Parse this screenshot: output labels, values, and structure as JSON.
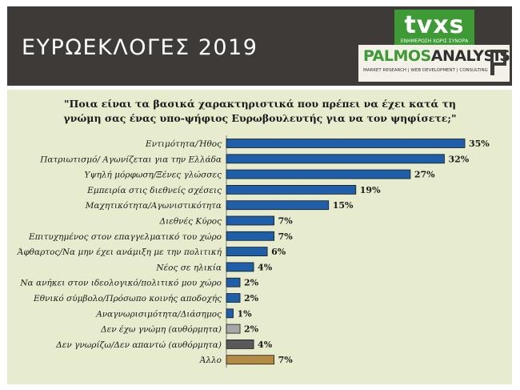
{
  "header": {
    "title": "ΕΥΡΩΕΚΛΟΓΕΣ 2019",
    "logo_main": "tvxs",
    "logo_tagline": "ΕΝΗΜΕΡΩΣΗ ΧΩΡΙΣ ΣΥΝΟΡΑ",
    "brand_name_1": "PALMOS",
    "brand_name_2": "ANALYSIS",
    "brand_subtitle": "MARKET RESEARCH | WEB DEVELOPMENT | CONSULTING",
    "colors": {
      "banner": "#3e3a38",
      "logo_green": "#3e9a35"
    }
  },
  "chart_data": {
    "type": "bar",
    "orientation": "horizontal",
    "title": "\"Ποια είναι τα βασικά χαρακτηριστικά που πρέπει να έχει κατά τη γνώμη σας ένας υπο-ψήφιος Ευρωβουλευτής για να τον ψηφίσετε;\"",
    "title_lines": [
      "\"Ποια είναι τα βασικά χαρακτηριστικά που πρέπει να έχει κατά τη",
      "γνώμη σας ένας υπο-ψήφιος Ευρωβουλευτής για να τον ψηφίσετε;\""
    ],
    "categories": [
      "Εντιμότητα/Ήθος",
      "Πατριωτισμό/ Αγωνίζεται για την Ελλάδα",
      "Υψηλή μόρφωση/Ξένες γλώσσες",
      "Εμπειρία στις διεθνείς σχέσεις",
      "Μαχητικότητα/Αγωνιστικότητα",
      "Διεθνές Κύρος",
      "Επιτυχημένος στον επαγγελματικό του χώρο",
      "Άφθαρτος/Να μην έχει ανάμιξη με την πολιτική",
      "Νέος σε ηλικία",
      "Να ανήκει στον ιδεολογικό/πολιτικό μου χώρο",
      "Εθνικό σύμβολο/Πρόσωπο κοινής αποδοχής",
      "Αναγνωρισιμότητα/Διάσημος",
      "Δεν έχω γνώμη (αυθόρμητα)",
      "Δεν γνωρίζω/Δεν απαντώ (αυθόρμητα)",
      "Άλλο"
    ],
    "values": [
      35,
      32,
      27,
      19,
      15,
      7,
      7,
      6,
      4,
      2,
      2,
      1,
      2,
      4,
      7
    ],
    "value_labels": [
      "35%",
      "32%",
      "27%",
      "19%",
      "15%",
      "7%",
      "7%",
      "6%",
      "4%",
      "2%",
      "2%",
      "1%",
      "2%",
      "4%",
      "7%"
    ],
    "bar_colors": [
      "#1f5ea8",
      "#1f5ea8",
      "#1f5ea8",
      "#1f5ea8",
      "#1f5ea8",
      "#1f5ea8",
      "#1f5ea8",
      "#1f5ea8",
      "#1f5ea8",
      "#1f5ea8",
      "#1f5ea8",
      "#1f5ea8",
      "#a6a6a6",
      "#595959",
      "#b38b45"
    ],
    "xlim": [
      0,
      35
    ],
    "unit": "%",
    "grid": false,
    "legend": "none",
    "background": "#e6eccd"
  }
}
